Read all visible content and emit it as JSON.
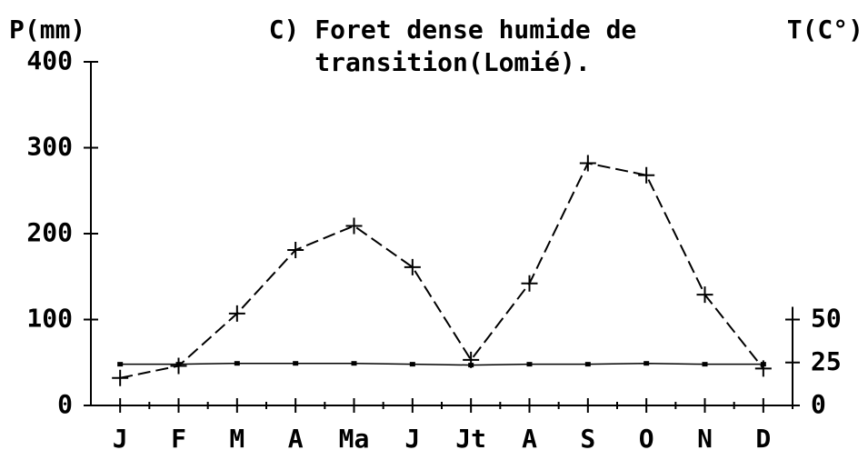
{
  "chart_data": {
    "type": "line",
    "title": [
      "C) Foret dense humide de",
      "transition(Lomié)."
    ],
    "ylabel": "P(mm)",
    "y2label": "T(C°)",
    "categories": [
      "J",
      "F",
      "M",
      "A",
      "Ma",
      "J",
      "Jt",
      "A",
      "S",
      "O",
      "N",
      "D"
    ],
    "series": [
      {
        "color": "#000000",
        "values": [
          32,
          46,
          107,
          181,
          209,
          161,
          53,
          142,
          282,
          268,
          129,
          43
        ]
      },
      {
        "color": "#000000",
        "axis": "y2",
        "values": [
          24,
          24,
          24.5,
          24.5,
          24.5,
          24,
          23.5,
          24,
          24,
          24.5,
          24,
          24
        ]
      }
    ],
    "ylim": [
      0,
      400
    ],
    "yticks": [
      0,
      100,
      200,
      300,
      400
    ],
    "y2lim": [
      0,
      200
    ],
    "y2ticks": [
      0,
      25,
      50
    ],
    "grid": false
  }
}
